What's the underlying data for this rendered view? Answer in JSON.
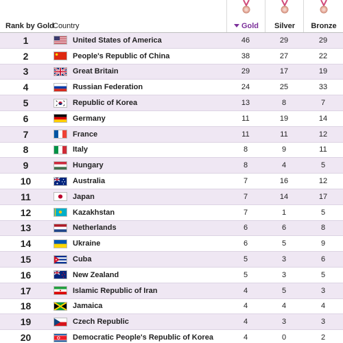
{
  "header": {
    "rank_label": "Rank by Gold",
    "country_label": "Country",
    "gold_label": "Gold",
    "silver_label": "Silver",
    "bronze_label": "Bronze"
  },
  "colors": {
    "row_highlight": "#efe7f3",
    "sort_accent": "#7b2f9a",
    "medal_ribbon": "#d04a7a",
    "medal_disc": "#e8b0a0"
  },
  "rows": [
    {
      "rank": "1",
      "country": "United States of America",
      "flag": "usa-flag",
      "gold": "46",
      "silver": "29",
      "bronze": "29"
    },
    {
      "rank": "2",
      "country": "People's Republic of China",
      "flag": "china-flag",
      "gold": "38",
      "silver": "27",
      "bronze": "22"
    },
    {
      "rank": "3",
      "country": "Great Britain",
      "flag": "uk-flag",
      "gold": "29",
      "silver": "17",
      "bronze": "19"
    },
    {
      "rank": "4",
      "country": "Russian Federation",
      "flag": "russia-flag",
      "gold": "24",
      "silver": "25",
      "bronze": "33"
    },
    {
      "rank": "5",
      "country": "Republic of Korea",
      "flag": "korea-flag",
      "gold": "13",
      "silver": "8",
      "bronze": "7"
    },
    {
      "rank": "6",
      "country": "Germany",
      "flag": "germany-flag",
      "gold": "11",
      "silver": "19",
      "bronze": "14"
    },
    {
      "rank": "7",
      "country": "France",
      "flag": "france-flag",
      "gold": "11",
      "silver": "11",
      "bronze": "12"
    },
    {
      "rank": "8",
      "country": "Italy",
      "flag": "italy-flag",
      "gold": "8",
      "silver": "9",
      "bronze": "11"
    },
    {
      "rank": "9",
      "country": "Hungary",
      "flag": "hungary-flag",
      "gold": "8",
      "silver": "4",
      "bronze": "5"
    },
    {
      "rank": "10",
      "country": "Australia",
      "flag": "australia-flag",
      "gold": "7",
      "silver": "16",
      "bronze": "12"
    },
    {
      "rank": "11",
      "country": "Japan",
      "flag": "japan-flag",
      "gold": "7",
      "silver": "14",
      "bronze": "17"
    },
    {
      "rank": "12",
      "country": "Kazakhstan",
      "flag": "kazakhstan-flag",
      "gold": "7",
      "silver": "1",
      "bronze": "5"
    },
    {
      "rank": "13",
      "country": "Netherlands",
      "flag": "netherlands-flag",
      "gold": "6",
      "silver": "6",
      "bronze": "8"
    },
    {
      "rank": "14",
      "country": "Ukraine",
      "flag": "ukraine-flag",
      "gold": "6",
      "silver": "5",
      "bronze": "9"
    },
    {
      "rank": "15",
      "country": "Cuba",
      "flag": "cuba-flag",
      "gold": "5",
      "silver": "3",
      "bronze": "6"
    },
    {
      "rank": "16",
      "country": "New Zealand",
      "flag": "new-zealand-flag",
      "gold": "5",
      "silver": "3",
      "bronze": "5"
    },
    {
      "rank": "17",
      "country": "Islamic Republic of Iran",
      "flag": "iran-flag",
      "gold": "4",
      "silver": "5",
      "bronze": "3"
    },
    {
      "rank": "18",
      "country": "Jamaica",
      "flag": "jamaica-flag",
      "gold": "4",
      "silver": "4",
      "bronze": "4"
    },
    {
      "rank": "19",
      "country": "Czech Republic",
      "flag": "czech-flag",
      "gold": "4",
      "silver": "3",
      "bronze": "3"
    },
    {
      "rank": "20",
      "country": "Democratic People's Republic of Korea",
      "flag": "north-korea-flag",
      "gold": "4",
      "silver": "0",
      "bronze": "2"
    }
  ]
}
